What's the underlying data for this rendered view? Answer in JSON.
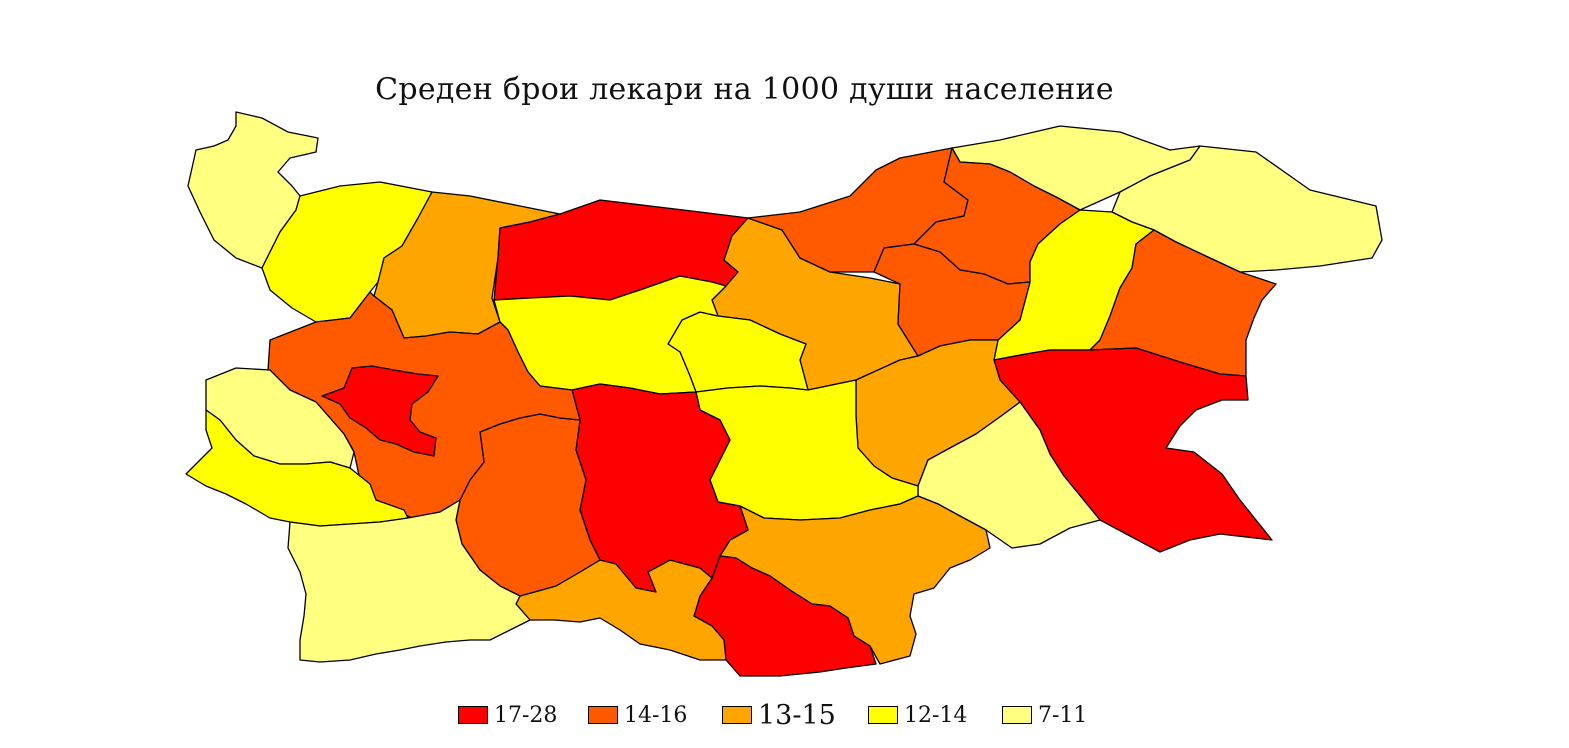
{
  "map": {
    "title": "Среден брои лекари на 1000 души население"
  },
  "classes": [
    {
      "id": "c1",
      "label": "17-28",
      "color": "#ff0000"
    },
    {
      "id": "c2",
      "label": "14-16",
      "color": "#ff5a00"
    },
    {
      "id": "c3",
      "label": "13-15",
      "color": "#ffa500"
    },
    {
      "id": "c4",
      "label": "12-14",
      "color": "#ffff00"
    },
    {
      "id": "c5",
      "label": "7-11",
      "color": "#ffff80"
    }
  ],
  "legend": {
    "items": [
      {
        "label": "17-28",
        "color": "#ff0000"
      },
      {
        "label": "14-16",
        "color": "#ff5a00"
      },
      {
        "label": "13-15",
        "color": "#ffa500"
      },
      {
        "label": "12-14",
        "color": "#ffff00"
      },
      {
        "label": "7-11",
        "color": "#ffff80"
      }
    ]
  }
}
